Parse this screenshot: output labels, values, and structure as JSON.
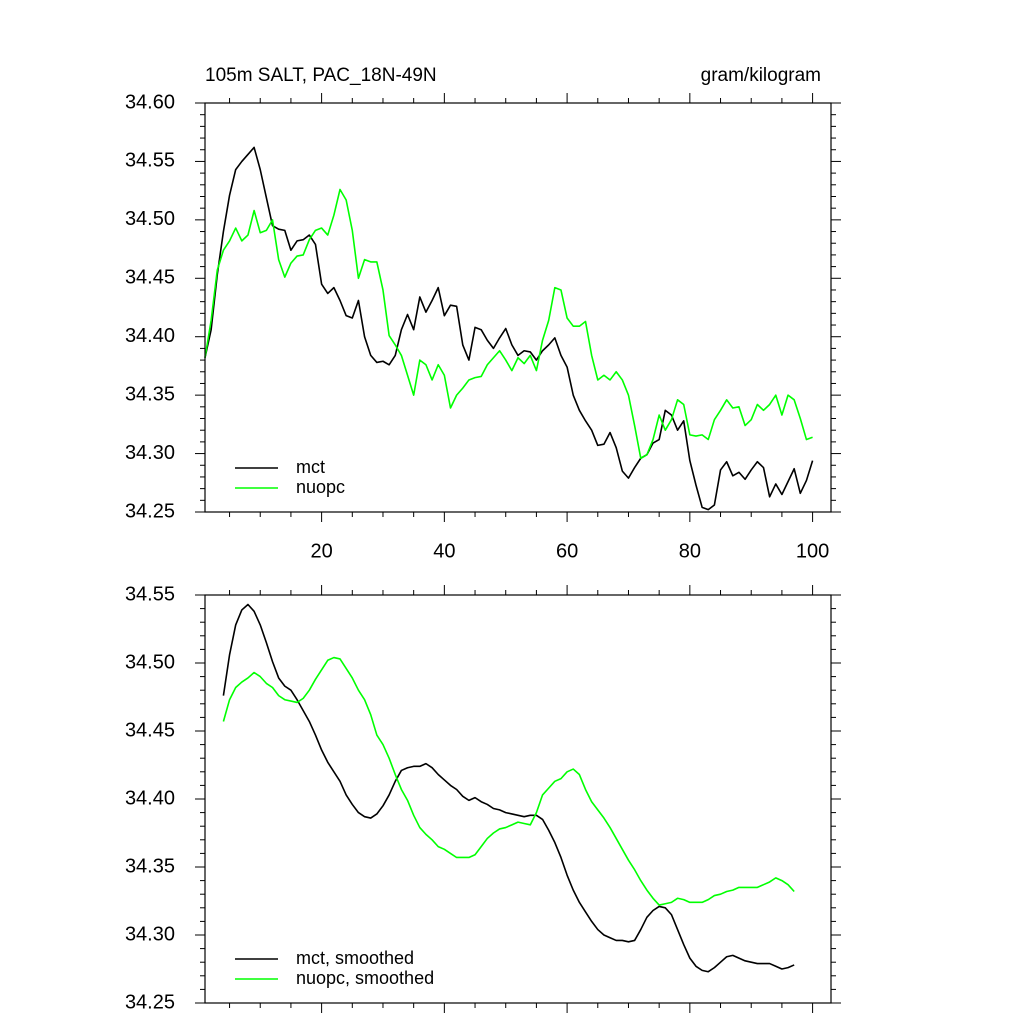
{
  "chart_data": [
    {
      "type": "line",
      "title": "105m SALT, PAC_18N-49N",
      "units": "gram/kilogram",
      "x": [
        1,
        2,
        3,
        4,
        5,
        6,
        7,
        8,
        9,
        10,
        11,
        12,
        13,
        14,
        15,
        16,
        17,
        18,
        19,
        20,
        21,
        22,
        23,
        24,
        25,
        26,
        27,
        28,
        29,
        30,
        31,
        32,
        33,
        34,
        35,
        36,
        37,
        38,
        39,
        40,
        41,
        42,
        43,
        44,
        45,
        46,
        47,
        48,
        49,
        50,
        51,
        52,
        53,
        54,
        55,
        56,
        57,
        58,
        59,
        60,
        61,
        62,
        63,
        64,
        65,
        66,
        67,
        68,
        69,
        70,
        71,
        72,
        73,
        74,
        75,
        76,
        77,
        78,
        79,
        80,
        81,
        82,
        83,
        84,
        85,
        86,
        87,
        88,
        89,
        90,
        91,
        92,
        93,
        94,
        95,
        96,
        97,
        98,
        99,
        100
      ],
      "series": [
        {
          "name": "mct",
          "color": "#000000",
          "values": [
            34.382,
            34.406,
            34.453,
            34.49,
            34.521,
            34.543,
            34.55,
            34.556,
            34.562,
            34.543,
            34.519,
            34.495,
            34.492,
            34.491,
            34.474,
            34.482,
            34.483,
            34.487,
            34.479,
            34.445,
            34.437,
            34.442,
            34.431,
            34.418,
            34.416,
            34.431,
            34.4,
            34.384,
            34.378,
            34.379,
            34.376,
            34.384,
            34.406,
            34.419,
            34.406,
            34.434,
            34.421,
            34.431,
            34.442,
            34.418,
            34.427,
            34.426,
            34.393,
            34.38,
            34.408,
            34.406,
            34.397,
            34.39,
            34.399,
            34.407,
            34.393,
            34.384,
            34.388,
            34.387,
            34.38,
            34.388,
            34.393,
            34.399,
            34.384,
            34.374,
            34.35,
            34.337,
            34.328,
            34.32,
            34.307,
            34.308,
            34.318,
            34.305,
            34.285,
            34.279,
            34.288,
            34.296,
            34.299,
            34.309,
            34.312,
            34.337,
            34.333,
            34.32,
            34.328,
            34.294,
            34.273,
            34.254,
            34.252,
            34.256,
            34.286,
            34.293,
            34.281,
            34.284,
            34.278,
            34.286,
            34.293,
            34.288,
            34.263,
            34.274,
            34.265,
            34.276,
            34.287,
            34.266,
            34.277,
            34.294
          ]
        },
        {
          "name": "nuopc",
          "color": "#00ff00",
          "values": [
            34.382,
            34.414,
            34.457,
            34.474,
            34.482,
            34.493,
            34.482,
            34.487,
            34.508,
            34.489,
            34.491,
            34.5,
            34.466,
            34.451,
            34.463,
            34.469,
            34.47,
            34.483,
            34.491,
            34.493,
            34.487,
            34.504,
            34.526,
            34.517,
            34.491,
            34.45,
            34.466,
            34.464,
            34.464,
            34.44,
            34.401,
            34.393,
            34.384,
            34.367,
            34.35,
            34.38,
            34.376,
            34.363,
            34.376,
            34.367,
            34.339,
            34.35,
            34.356,
            34.363,
            34.365,
            34.366,
            34.376,
            34.382,
            34.388,
            34.38,
            34.371,
            34.382,
            34.377,
            34.384,
            34.371,
            34.397,
            34.414,
            34.442,
            34.44,
            34.416,
            34.409,
            34.409,
            34.413,
            34.384,
            34.363,
            34.367,
            34.363,
            34.37,
            34.363,
            34.35,
            34.324,
            34.296,
            34.299,
            34.312,
            34.333,
            34.32,
            34.329,
            34.346,
            34.342,
            34.316,
            34.315,
            34.316,
            34.312,
            34.329,
            34.337,
            34.346,
            34.339,
            34.34,
            34.324,
            34.329,
            34.342,
            34.337,
            34.342,
            34.35,
            34.333,
            34.35,
            34.346,
            34.33,
            34.312,
            34.314
          ]
        }
      ],
      "xlim": [
        1,
        103
      ],
      "xticks": [
        20,
        40,
        60,
        80,
        100
      ],
      "ylim": [
        34.25,
        34.6
      ],
      "yticks": [
        34.25,
        {
          "value": 34.3,
          "label": "34.30"
        },
        34.35,
        {
          "value": 34.4,
          "label": "34.40"
        },
        34.45,
        {
          "value": 34.5,
          "label": "34.50"
        },
        34.55,
        {
          "value": 34.6,
          "label": "34.60"
        }
      ],
      "legend": "lower left"
    },
    {
      "type": "line",
      "x": [
        4,
        5,
        6,
        7,
        8,
        9,
        10,
        11,
        12,
        13,
        14,
        15,
        16,
        17,
        18,
        19,
        20,
        21,
        22,
        23,
        24,
        25,
        26,
        27,
        28,
        29,
        30,
        31,
        32,
        33,
        34,
        35,
        36,
        37,
        38,
        39,
        40,
        41,
        42,
        43,
        44,
        45,
        46,
        47,
        48,
        49,
        50,
        51,
        52,
        53,
        54,
        55,
        56,
        57,
        58,
        59,
        60,
        61,
        62,
        63,
        64,
        65,
        66,
        67,
        68,
        69,
        70,
        71,
        72,
        73,
        74,
        75,
        76,
        77,
        78,
        79,
        80,
        81,
        82,
        83,
        84,
        85,
        86,
        87,
        88,
        89,
        90,
        91,
        92,
        93,
        94,
        95,
        96,
        97
      ],
      "series": [
        {
          "name": "mct, smoothed",
          "color": "#000000",
          "values": [
            34.476,
            34.506,
            34.528,
            34.539,
            34.543,
            34.538,
            34.528,
            34.515,
            34.501,
            34.489,
            34.483,
            34.48,
            34.473,
            34.465,
            34.457,
            34.447,
            34.436,
            34.427,
            34.42,
            34.413,
            34.403,
            34.396,
            34.39,
            34.387,
            34.386,
            34.389,
            34.395,
            34.403,
            34.413,
            34.421,
            34.423,
            34.424,
            34.424,
            34.426,
            34.423,
            34.418,
            34.414,
            34.41,
            34.407,
            34.402,
            34.399,
            34.401,
            34.398,
            34.396,
            34.393,
            34.392,
            34.39,
            34.389,
            34.388,
            34.387,
            34.388,
            34.388,
            34.385,
            34.377,
            34.368,
            34.357,
            34.344,
            34.333,
            34.324,
            34.317,
            34.31,
            34.304,
            34.3,
            34.298,
            34.296,
            34.296,
            34.295,
            34.296,
            34.304,
            34.313,
            34.318,
            34.321,
            34.32,
            34.315,
            34.304,
            34.293,
            34.283,
            34.277,
            34.274,
            34.273,
            34.276,
            34.28,
            34.284,
            34.285,
            34.283,
            34.281,
            34.28,
            34.279,
            34.279,
            34.279,
            34.277,
            34.275,
            34.276,
            34.278
          ]
        },
        {
          "name": "nuopc, smoothed",
          "color": "#00ff00",
          "values": [
            34.457,
            34.473,
            34.482,
            34.486,
            34.489,
            34.493,
            34.49,
            34.485,
            34.482,
            34.476,
            34.473,
            34.472,
            34.471,
            34.474,
            34.48,
            34.488,
            34.495,
            34.502,
            34.504,
            34.503,
            34.496,
            34.489,
            34.48,
            34.473,
            34.462,
            34.447,
            34.44,
            34.43,
            34.418,
            34.407,
            34.399,
            34.388,
            34.379,
            34.374,
            34.37,
            34.365,
            34.363,
            34.36,
            34.357,
            34.357,
            34.357,
            34.359,
            34.365,
            34.371,
            34.375,
            34.378,
            34.379,
            34.381,
            34.383,
            34.382,
            34.381,
            34.39,
            34.403,
            34.408,
            34.413,
            34.415,
            34.42,
            34.422,
            34.418,
            34.407,
            34.398,
            34.392,
            34.386,
            34.379,
            34.371,
            34.363,
            34.355,
            34.348,
            34.34,
            34.333,
            34.327,
            34.322,
            34.323,
            34.324,
            34.327,
            34.326,
            34.324,
            34.324,
            34.324,
            34.326,
            34.329,
            34.33,
            34.332,
            34.333,
            34.335,
            34.335,
            34.335,
            34.335,
            34.337,
            34.339,
            34.342,
            34.34,
            34.337,
            34.332
          ]
        }
      ],
      "xlim": [
        1,
        103
      ],
      "xticks": [
        20,
        40,
        60,
        80,
        100
      ],
      "ylim": [
        34.25,
        34.55
      ],
      "yticks": [
        34.25,
        {
          "value": 34.3,
          "label": "34.30"
        },
        34.35,
        {
          "value": 34.4,
          "label": "34.40"
        },
        34.45,
        {
          "value": 34.5,
          "label": "34.50"
        },
        34.55
      ],
      "legend": "lower left"
    }
  ]
}
